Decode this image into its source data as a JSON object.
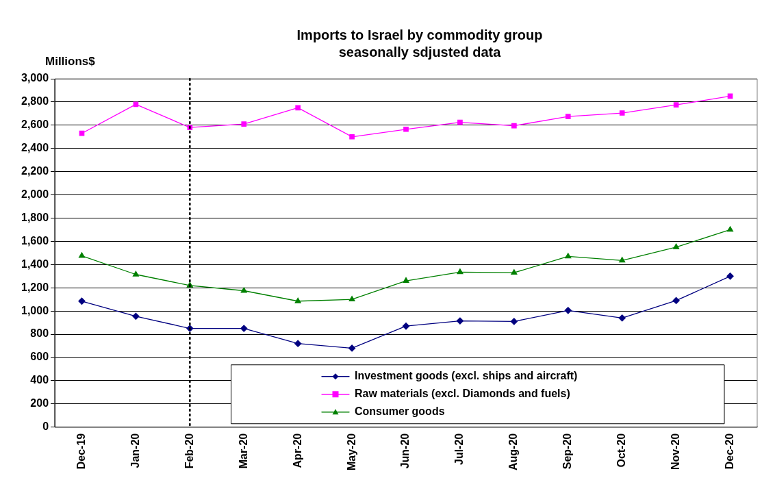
{
  "chart_data": {
    "type": "line",
    "title": "Imports to Israel by commodity group\nseasonally sdjusted data",
    "ylabel": "Millions$",
    "categories": [
      "Dec-19",
      "Jan-20",
      "Feb-20",
      "Mar-20",
      "Apr-20",
      "May-20",
      "Jun-20",
      "Jul-20",
      "Aug-20",
      "Sep-20",
      "Oct-20",
      "Nov-20",
      "Dec-20"
    ],
    "series": [
      {
        "name": "Investment goods (excl. ships and aircraft)",
        "color": "#000080",
        "marker": "diamond",
        "values": [
          1085,
          955,
          850,
          850,
          720,
          680,
          870,
          915,
          910,
          1005,
          940,
          1090,
          1300
        ]
      },
      {
        "name": "Raw materials (excl. Diamonds and fuels)",
        "color": "#ff00ff",
        "marker": "square",
        "values": [
          2530,
          2780,
          2580,
          2610,
          2750,
          2500,
          2565,
          2625,
          2595,
          2675,
          2705,
          2775,
          2850
        ]
      },
      {
        "name": "Consumer goods",
        "color": "#008000",
        "marker": "triangle",
        "values": [
          1475,
          1315,
          1220,
          1175,
          1085,
          1100,
          1260,
          1335,
          1330,
          1470,
          1435,
          1550,
          1700
        ]
      }
    ],
    "ylim": [
      0,
      3000
    ],
    "yticks": [
      0,
      200,
      400,
      600,
      800,
      {
        "value": 1000,
        "label": "1,000"
      },
      {
        "value": 1200,
        "label": "1,200"
      },
      {
        "value": 1400,
        "label": "1,400"
      },
      {
        "value": 1600,
        "label": "1,600"
      },
      {
        "value": 1800,
        "label": "1,800"
      },
      {
        "value": 2000,
        "label": "2,000"
      },
      {
        "value": 2200,
        "label": "2,200"
      },
      {
        "value": 2400,
        "label": "2,400"
      },
      {
        "value": 2600,
        "label": "2,600"
      },
      {
        "value": 2800,
        "label": "2,800"
      },
      {
        "value": 3000,
        "label": "3,000"
      }
    ],
    "grid": "y",
    "legend": "bottom",
    "line_style": "solid",
    "ref_lines": [
      {
        "axis": "x",
        "value": "Feb-20",
        "color": "#000000",
        "line_style": "dotted"
      }
    ]
  }
}
